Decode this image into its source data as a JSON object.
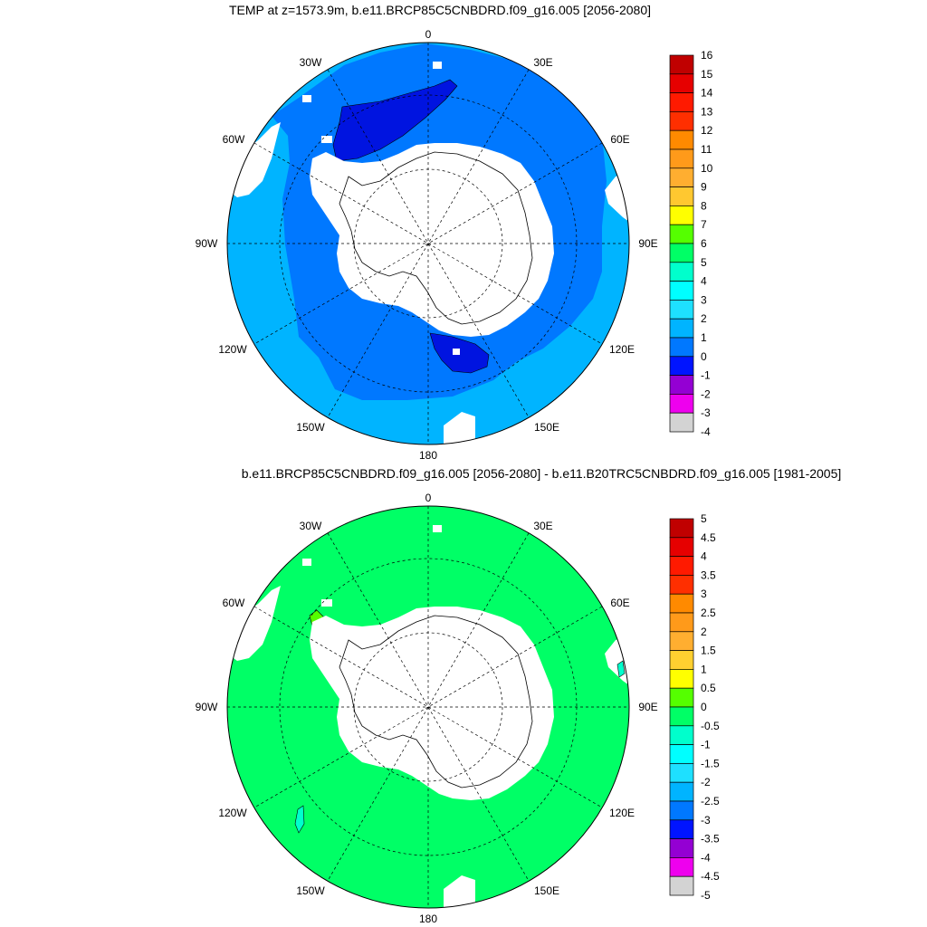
{
  "maps": [
    {
      "id": "top",
      "title": "TEMP at z=1573.9m, b.e11.BRCP85C5CNBDRD.f09_g16.005 [2056-2080]",
      "lon_labels": [
        "0",
        "30E",
        "60E",
        "90E",
        "120E",
        "150E",
        "180",
        "150W",
        "120W",
        "90W",
        "60W",
        "30W"
      ],
      "colorbar_labels": [
        "16",
        "15",
        "14",
        "13",
        "12",
        "11",
        "10",
        "9",
        "8",
        "7",
        "6",
        "5",
        "4",
        "3",
        "2",
        "1",
        "0",
        "-1",
        "-2",
        "-3",
        "-4"
      ],
      "colorbar_colors": [
        "#c00000",
        "#e60000",
        "#ff1a00",
        "#ff2f00",
        "#ff8a00",
        "#ff9a1a",
        "#ffae30",
        "#ffc830",
        "#ffff00",
        "#55ff00",
        "#00ff66",
        "#00ffcc",
        "#00ffff",
        "#1ee0ff",
        "#00b4ff",
        "#0078ff",
        "#0014ff",
        "#9400d3",
        "#ee00ee",
        "#d3d3d3",
        "#6e6e6e"
      ]
    },
    {
      "id": "bottom",
      "title": "b.e11.BRCP85C5CNBDRD.f09_g16.005 [2056-2080] - b.e11.B20TRC5CNBDRD.f09_g16.005 [1981-2005]",
      "lon_labels": [
        "0",
        "30E",
        "60E",
        "90E",
        "120E",
        "150E",
        "180",
        "150W",
        "120W",
        "90W",
        "60W",
        "30W"
      ],
      "colorbar_labels": [
        "5",
        "4.5",
        "4",
        "3.5",
        "3",
        "2.5",
        "2",
        "1.5",
        "1",
        "0.5",
        "0",
        "-0.5",
        "-1",
        "-1.5",
        "-2",
        "-2.5",
        "-3",
        "-3.5",
        "-4",
        "-4.5",
        "-5"
      ],
      "colorbar_colors": [
        "#c00000",
        "#e60000",
        "#ff1a00",
        "#ff2f00",
        "#ff8a00",
        "#ff9a1a",
        "#ffae30",
        "#ffd030",
        "#ffff00",
        "#55ff00",
        "#00ff66",
        "#00ffcc",
        "#00ffff",
        "#1ee0ff",
        "#00b4ff",
        "#0078ff",
        "#0014ff",
        "#9400d3",
        "#ee00ee",
        "#d3d3d3",
        "#6e6e6e"
      ]
    }
  ]
}
